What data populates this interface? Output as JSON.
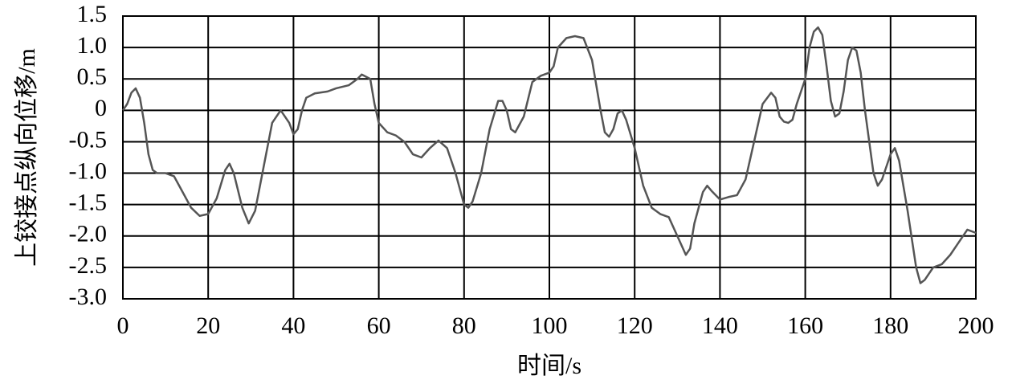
{
  "chart_data": {
    "type": "line",
    "xlabel": "时间/s",
    "ylabel": "上铰接点纵向位移/m",
    "xlim": [
      0,
      200
    ],
    "ylim": [
      -3,
      1.5
    ],
    "xticks": [
      0,
      20,
      40,
      60,
      80,
      100,
      120,
      140,
      160,
      180,
      200
    ],
    "yticks": [
      {
        "value": -3,
        "label": "-3.0"
      },
      -2.5,
      {
        "value": -2,
        "label": "-2.0"
      },
      -1.5,
      {
        "value": -1,
        "label": "-1.0"
      },
      -0.5,
      0,
      0.5,
      {
        "value": 1,
        "label": "1.0"
      },
      1.5
    ],
    "grid": true,
    "series": [
      {
        "color": "#555555",
        "x": [
          0,
          1,
          2,
          3,
          4,
          5,
          6,
          7,
          8,
          10,
          12,
          14,
          16,
          18,
          20,
          22,
          24,
          25,
          26,
          28,
          29.5,
          31,
          33,
          35,
          37,
          39,
          40,
          41,
          42,
          43,
          45,
          48,
          50,
          53,
          55,
          56,
          58,
          59,
          60,
          62,
          64,
          66,
          68,
          70,
          72,
          74,
          76,
          78,
          80,
          81,
          82,
          84,
          86,
          88,
          89,
          90,
          91,
          92,
          94,
          96,
          98,
          100,
          101,
          102,
          104,
          106,
          108,
          110,
          112,
          113,
          114,
          115,
          116,
          117,
          118,
          120,
          122,
          124,
          126,
          128,
          130,
          132,
          133,
          134,
          136,
          137,
          138,
          140,
          142,
          144,
          146,
          148,
          150,
          152,
          153,
          154,
          155,
          156,
          157,
          158,
          160,
          161,
          162,
          163,
          164,
          165,
          166,
          167,
          168,
          169,
          170,
          171,
          172,
          173,
          174,
          176,
          177,
          178,
          179,
          180,
          181,
          182,
          184,
          186,
          187,
          188,
          190,
          192,
          194,
          196,
          198,
          200
        ],
        "values": [
          0,
          0.1,
          0.28,
          0.35,
          0.2,
          -0.2,
          -0.7,
          -0.95,
          -1.0,
          -1.0,
          -1.05,
          -1.3,
          -1.55,
          -1.68,
          -1.65,
          -1.4,
          -0.95,
          -0.85,
          -1.0,
          -1.55,
          -1.8,
          -1.6,
          -0.9,
          -0.2,
          0,
          -0.2,
          -0.38,
          -0.3,
          0,
          0.2,
          0.27,
          0.3,
          0.35,
          0.4,
          0.5,
          0.57,
          0.5,
          0.1,
          -0.2,
          -0.35,
          -0.4,
          -0.5,
          -0.7,
          -0.75,
          -0.6,
          -0.48,
          -0.6,
          -1.0,
          -1.5,
          -1.55,
          -1.45,
          -1.0,
          -0.3,
          0.15,
          0.15,
          0,
          -0.3,
          -0.35,
          -0.1,
          0.45,
          0.55,
          0.6,
          0.7,
          1.0,
          1.15,
          1.18,
          1.15,
          0.8,
          0.0,
          -0.35,
          -0.42,
          -0.3,
          -0.05,
          0,
          -0.15,
          -0.6,
          -1.2,
          -1.55,
          -1.65,
          -1.7,
          -2.0,
          -2.3,
          -2.2,
          -1.8,
          -1.3,
          -1.2,
          -1.28,
          -1.42,
          -1.38,
          -1.35,
          -1.1,
          -0.5,
          0.1,
          0.28,
          0.2,
          -0.1,
          -0.18,
          -0.2,
          -0.15,
          0.1,
          0.5,
          1.0,
          1.25,
          1.32,
          1.2,
          0.7,
          0.15,
          -0.1,
          -0.05,
          0.3,
          0.8,
          1.0,
          0.95,
          0.6,
          0,
          -1.0,
          -1.2,
          -1.1,
          -0.9,
          -0.7,
          -0.6,
          -0.8,
          -1.6,
          -2.5,
          -2.75,
          -2.7,
          -2.5,
          -2.45,
          -2.3,
          -2.1,
          -1.9,
          -1.95
        ]
      }
    ]
  }
}
